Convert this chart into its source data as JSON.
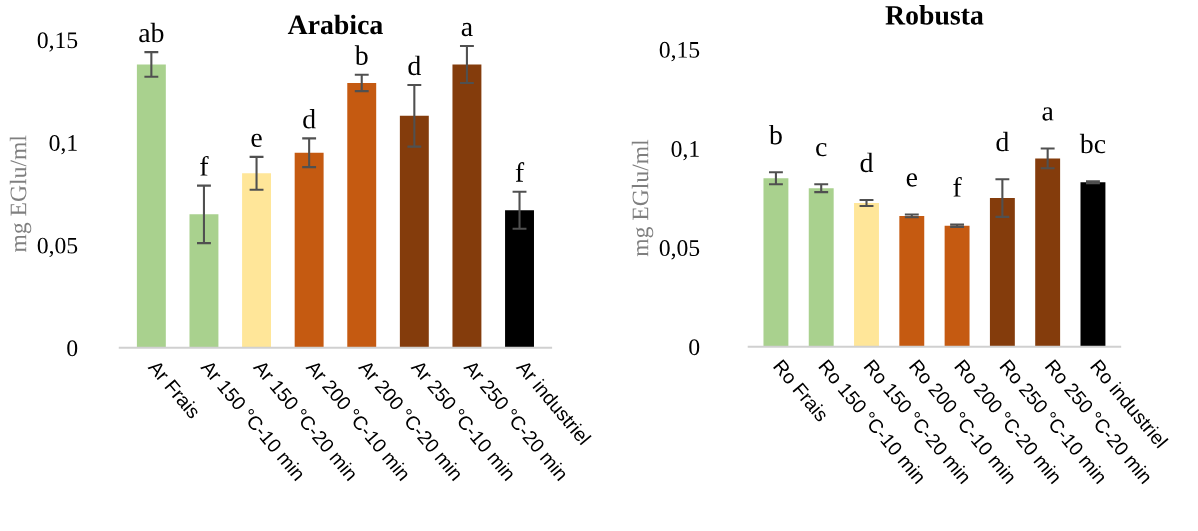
{
  "chart_data": [
    {
      "type": "bar",
      "title": "Arabica",
      "ylabel": "mg EGlu/ml",
      "categories": [
        "Ar Frais",
        "Ar 150 °C-10 min",
        "Ar 150 °C-20 min",
        "Ar 200 °C-10 min",
        "Ar 200 °C-20 min",
        "Ar 250 °C-10 min",
        "Ar 250 °C-20 min",
        "Ar industriel"
      ],
      "values": [
        0.138,
        0.065,
        0.085,
        0.095,
        0.129,
        0.113,
        0.138,
        0.067
      ],
      "errors": [
        0.006,
        0.014,
        0.008,
        0.007,
        0.004,
        0.015,
        0.009,
        0.009
      ],
      "colors": [
        "#a9d18e",
        "#a9d18e",
        "#ffe699",
        "#c55a11",
        "#c55a11",
        "#843c0c",
        "#843c0c",
        "#000000"
      ],
      "ylim": [
        0,
        0.15
      ],
      "yticks": [
        0,
        {
          "value": 0.05,
          "label": "0,05"
        },
        {
          "value": 0.1,
          "label": "0,1"
        },
        {
          "value": 0.15,
          "label": "0,15"
        }
      ],
      "grid": false,
      "annotations": [
        "ab",
        "f",
        "e",
        "d",
        "b",
        "d",
        "a",
        "f"
      ]
    },
    {
      "type": "bar",
      "title": "Robusta",
      "ylabel": "mg EGlu/ml",
      "categories": [
        "Ro Frais",
        "Ro 150 °C-10 min",
        "Ro 150 °C-20 min",
        "Ro 200 °C-10 min",
        "Ro 200 °C-20 min",
        "Ro 250 °C-10 min",
        "Ro 250 °C-20 min",
        "Ro industriel"
      ],
      "values": [
        0.085,
        0.08,
        0.0725,
        0.066,
        0.061,
        0.075,
        0.095,
        0.083
      ],
      "errors": [
        0.003,
        0.002,
        0.0015,
        0.0007,
        0.0006,
        0.0095,
        0.005,
        0.0005
      ],
      "colors": [
        "#a9d18e",
        "#a9d18e",
        "#ffe699",
        "#c55a11",
        "#c55a11",
        "#843c0c",
        "#843c0c",
        "#000000"
      ],
      "ylim": [
        0,
        0.15
      ],
      "yticks": [
        0,
        {
          "value": 0.05,
          "label": "0,05"
        },
        {
          "value": 0.1,
          "label": "0,1"
        },
        {
          "value": 0.15,
          "label": "0,15"
        }
      ],
      "grid": false,
      "annotations": [
        "b",
        "c",
        "d",
        "e",
        "f",
        "d",
        "a",
        "bc"
      ]
    }
  ]
}
